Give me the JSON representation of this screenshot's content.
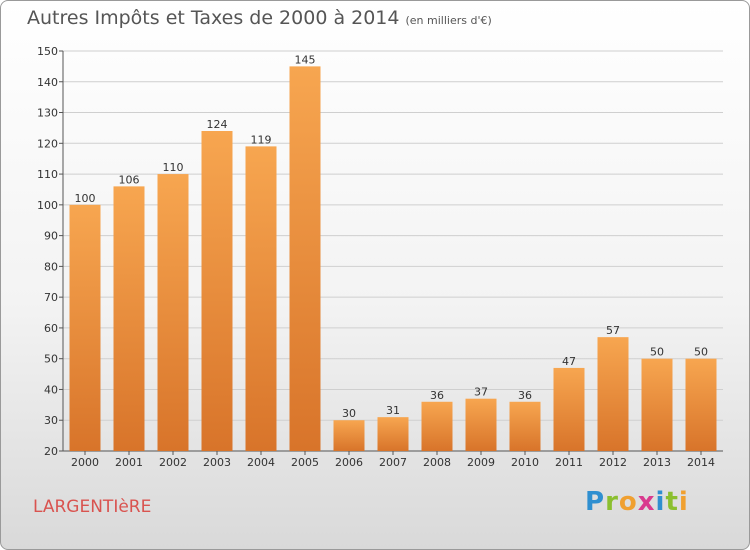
{
  "title": {
    "main": "Autres Impôts et Taxes de 2000 à 2014",
    "unit": "(en milliers d'€)"
  },
  "commune": "LARGENTIèRE",
  "logo": {
    "letters": [
      "P",
      "r",
      "o",
      "x",
      "i",
      "t",
      "i"
    ],
    "colors": [
      "#2f8fd0",
      "#8bbf2f",
      "#f0a030",
      "#d93a8e",
      "#2f8fd0",
      "#8bbf2f",
      "#f0a030"
    ]
  },
  "colors": {
    "bar_light": "#f7a650",
    "bar_dark": "#d8742a",
    "grid": "#cfcfcf"
  },
  "chart_data": {
    "type": "bar",
    "categories": [
      "2000",
      "2001",
      "2002",
      "2003",
      "2004",
      "2005",
      "2006",
      "2007",
      "2008",
      "2009",
      "2010",
      "2011",
      "2012",
      "2013",
      "2014"
    ],
    "values": [
      100,
      106,
      110,
      124,
      119,
      145,
      30,
      31,
      36,
      37,
      36,
      47,
      57,
      50,
      50
    ],
    "ylim": [
      20,
      150
    ],
    "yticks": [
      20,
      30,
      40,
      50,
      60,
      70,
      80,
      90,
      100,
      110,
      120,
      130,
      140,
      150
    ],
    "grid": true,
    "data_labels": true
  }
}
